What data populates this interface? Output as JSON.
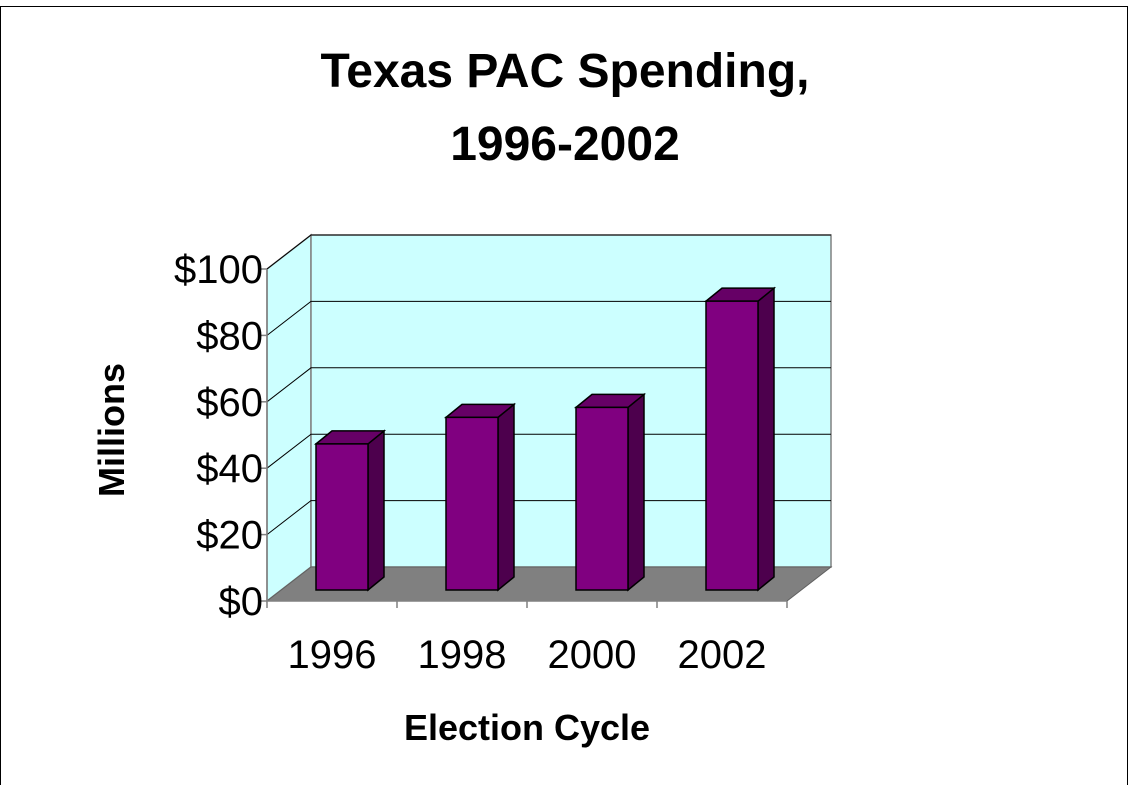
{
  "chart_data": {
    "type": "bar",
    "title_lines": [
      "Texas PAC Spending,",
      "1996-2002"
    ],
    "xlabel": "Election Cycle",
    "ylabel": "Millions",
    "categories": [
      "1996",
      "1998",
      "2000",
      "2002"
    ],
    "values": [
      44,
      52,
      55,
      87
    ],
    "ylim": [
      0,
      100
    ],
    "yticks": [
      0,
      20,
      40,
      60,
      80,
      100
    ],
    "ytick_labels": [
      "$0",
      "$20",
      "$40",
      "$60",
      "$80",
      "$100"
    ],
    "grid": true,
    "legend": "none",
    "colors": {
      "bar_front": "#800080",
      "bar_side": "#4d004d",
      "bar_top": "#660066",
      "back_wall": "#ccffff",
      "floor": "#808080",
      "gridline": "#000000"
    }
  }
}
